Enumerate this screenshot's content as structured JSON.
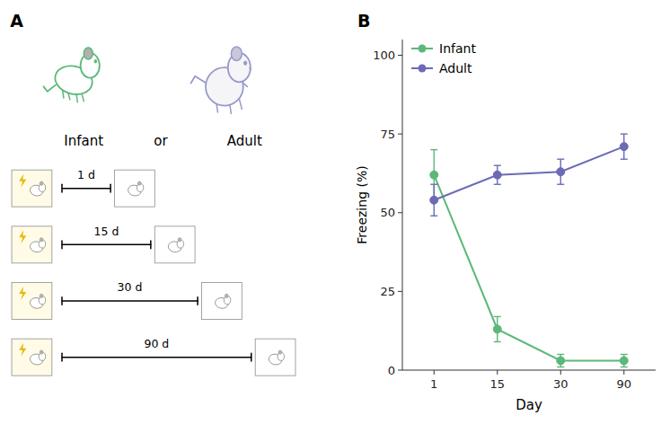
{
  "chart_data": [
    {
      "type": "diagram",
      "title": "A",
      "annotations": [
        "Infant",
        "or",
        "Adult"
      ],
      "categories": [
        "1 d",
        "15 d",
        "30 d",
        "90 d"
      ],
      "colors": [
        "#5cb87a",
        "#9999cc"
      ]
    },
    {
      "type": "line",
      "title": "B",
      "x_label": "Day",
      "y_label": "Freezing (%)",
      "categories": [
        "1",
        "15",
        "30",
        "90"
      ],
      "series": [
        {
          "name": "Infant",
          "color": "#5cb87a",
          "marker": "circle",
          "line_style": "solid",
          "values": [
            62,
            13,
            3,
            3
          ],
          "errors": [
            8,
            4,
            2,
            2
          ]
        },
        {
          "name": "Adult",
          "color": "#6b6bb5",
          "marker": "circle",
          "line_style": "solid",
          "values": [
            54,
            62,
            63,
            71
          ],
          "errors": [
            5,
            3,
            4,
            4
          ]
        }
      ],
      "ylim": [
        0,
        105
      ],
      "yticks": [
        0,
        25,
        50,
        75,
        100
      ],
      "grid": false,
      "legend": "upper left"
    }
  ]
}
